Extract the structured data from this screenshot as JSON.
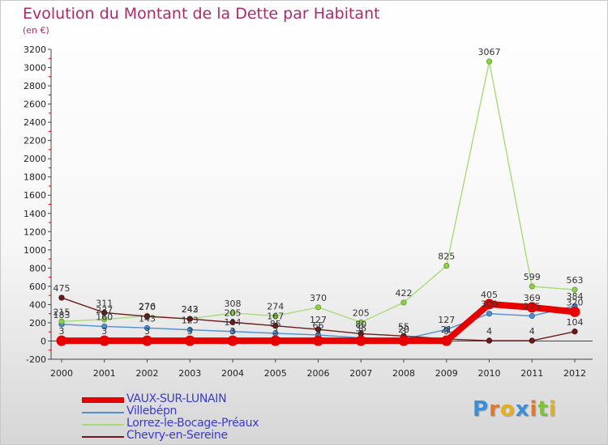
{
  "title": "Evolution du Montant de la Dette par Habitant",
  "subtitle": "(en €)",
  "logo": "Proxiti",
  "chart_data": {
    "type": "line",
    "title": "Evolution du Montant de la Dette par Habitant",
    "ylabel": "(en €)",
    "categories": [
      "2000",
      "2001",
      "2002",
      "2003",
      "2004",
      "2005",
      "2006",
      "2007",
      "2008",
      "2009",
      "2010",
      "2011",
      "2012"
    ],
    "y_ticks": [
      -200,
      0,
      200,
      400,
      600,
      800,
      1000,
      1200,
      1400,
      1600,
      1800,
      2000,
      2200,
      2400,
      2600,
      2800,
      3000,
      3200
    ],
    "y_tick_labels": [
      "-200",
      "0",
      "200",
      "400",
      "600",
      "800",
      "1000",
      "1200",
      "1400",
      "1600",
      "1800",
      "2000",
      "2200",
      "2400",
      "2600",
      "2800",
      "3000",
      "3200"
    ],
    "ylim": [
      -200,
      3200
    ],
    "grid": false,
    "legend_position": "bottom-left",
    "series": [
      {
        "name": "VAUX-SUR-LUNAIN",
        "color": "#e60000",
        "values": [
          3,
          3,
          3,
          3,
          3,
          3,
          3,
          3,
          3,
          3,
          405,
          369,
          320
        ]
      },
      {
        "name": "Villebépn",
        "color": "#4f8fd0",
        "values": [
          183,
          160,
          143,
          123,
          104,
          85,
          66,
          35,
          20,
          127,
          300,
          275,
          384
        ]
      },
      {
        "name": "Lorrez-le-Bocage-Préaux",
        "color": "#a8dc78",
        "values": [
          215,
          237,
          276,
          243,
          308,
          274,
          370,
          205,
          422,
          825,
          3067,
          599,
          563
        ]
      },
      {
        "name": "Chevry-en-Sereine",
        "color": "#6e1a1a",
        "values": [
          475,
          311,
          270,
          242,
          205,
          167,
          127,
          80,
          55,
          21,
          4,
          4,
          104
        ]
      }
    ],
    "labels": [
      [
        "3",
        "3",
        "3",
        "3",
        "3",
        "3",
        "3",
        "3",
        "3",
        "3",
        "405",
        "369",
        "320"
      ],
      [
        "183",
        "160",
        "143",
        "123",
        "104",
        "85",
        "66",
        "35",
        "20",
        "127",
        "300",
        "275",
        "384"
      ],
      [
        "215",
        "237",
        "276",
        "243",
        "308",
        "274",
        "370",
        "205",
        "422",
        "825",
        "3067",
        "599",
        "563"
      ],
      [
        "475",
        "311",
        "270",
        "242",
        "205",
        "167",
        "127",
        "80",
        "55",
        "21",
        "4",
        "4",
        "104"
      ]
    ]
  }
}
